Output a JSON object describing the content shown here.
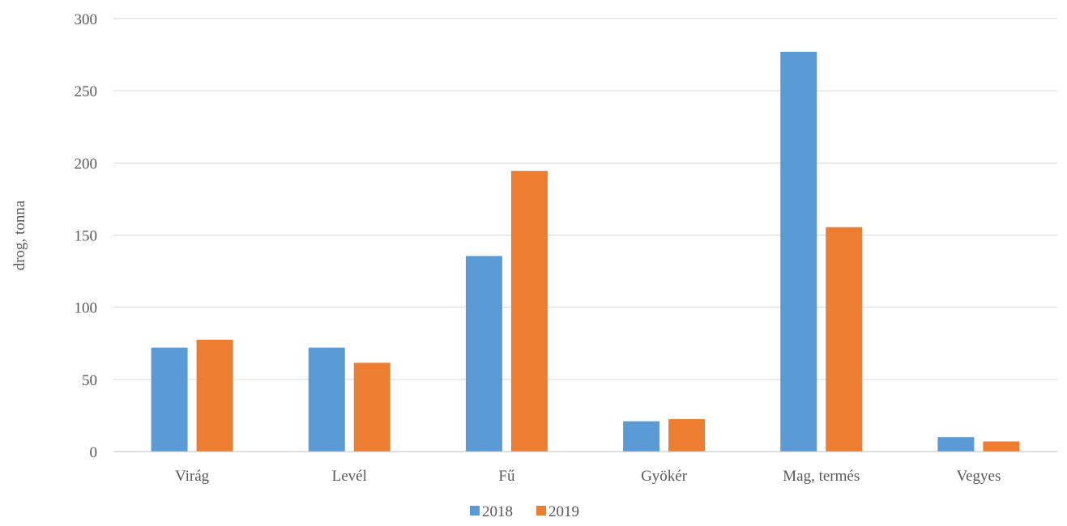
{
  "chart_data": {
    "type": "bar",
    "title": "",
    "xlabel": "",
    "ylabel": "drog, tonna",
    "ylim": [
      0,
      300
    ],
    "yticks": [
      0,
      50,
      100,
      150,
      200,
      250,
      300
    ],
    "grid": true,
    "legend_position": "bottom",
    "categories": [
      "Virág",
      "Levél",
      "Fű",
      "Gyökér",
      "Mag, termés",
      "Vegyes"
    ],
    "series": [
      {
        "name": "2018",
        "color": "#5b9bd5",
        "values": [
          72,
          72,
          135.5,
          21,
          277,
          10
        ]
      },
      {
        "name": "2019",
        "color": "#ed7d31",
        "values": [
          77.5,
          61.5,
          194.5,
          22.5,
          155.5,
          7
        ]
      }
    ]
  }
}
